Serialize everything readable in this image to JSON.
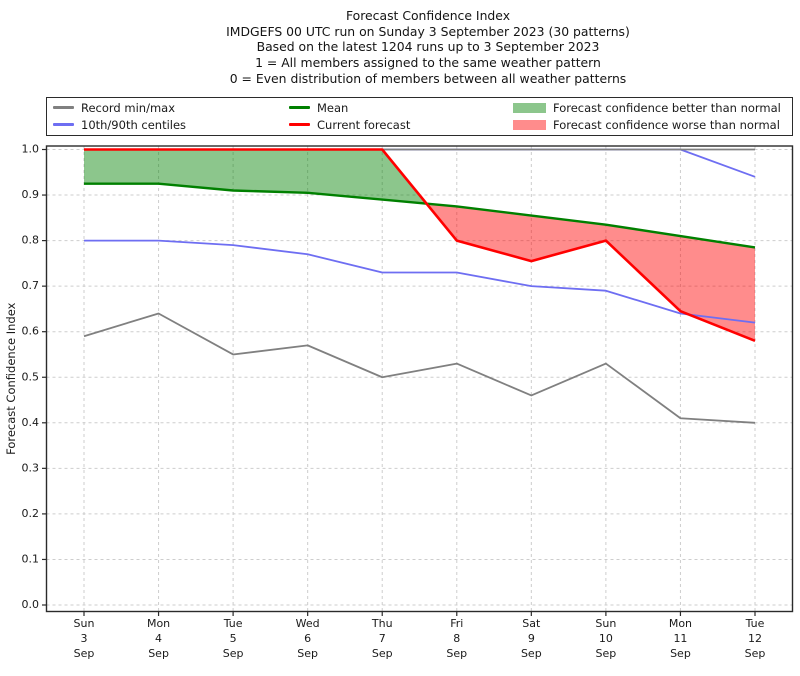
{
  "title": {
    "lines": [
      "Forecast Confidence Index",
      "IMDGEFS 00 UTC run on Sunday 3 September 2023 (30 patterns)",
      "Based on the latest 1204 runs up to 3 September 2023",
      "1 = All members assigned to the same weather pattern",
      "0 = Even distribution of members between all weather patterns"
    ]
  },
  "legend": {
    "items": [
      {
        "label": "Record min/max",
        "swatch": "line",
        "color": "#808080"
      },
      {
        "label": "10th/90th centiles",
        "swatch": "line",
        "color": "#6e6ef2"
      },
      {
        "label": "Mean",
        "swatch": "line",
        "color": "#008000"
      },
      {
        "label": "Current forecast",
        "swatch": "line",
        "color": "#ff0000"
      },
      {
        "label": "Forecast confidence better than normal",
        "swatch": "patch",
        "color": "rgba(0,128,0,0.45)"
      },
      {
        "label": "Forecast confidence worse than normal",
        "swatch": "patch",
        "color": "rgba(255,0,0,0.45)"
      }
    ]
  },
  "chart_data": {
    "type": "line",
    "title": "Forecast Confidence Index",
    "ylabel": "Forecast Confidence Index",
    "ylim": [
      0.0,
      1.0
    ],
    "ytick_step": 0.1,
    "grid": true,
    "legend_position": "top",
    "categories": [
      "Sun 3 Sep",
      "Mon 4 Sep",
      "Tue 5 Sep",
      "Wed 6 Sep",
      "Thu 7 Sep",
      "Fri 8 Sep",
      "Sat 9 Sep",
      "Sun 10 Sep",
      "Mon 11 Sep",
      "Tue 12 Sep"
    ],
    "series": [
      {
        "name": "Record max",
        "role": "record",
        "color": "#808080",
        "values": [
          1.0,
          1.0,
          1.0,
          1.0,
          1.0,
          1.0,
          1.0,
          1.0,
          1.0,
          1.0
        ]
      },
      {
        "name": "Record min",
        "role": "record",
        "color": "#808080",
        "values": [
          0.59,
          0.64,
          0.55,
          0.57,
          0.5,
          0.53,
          0.46,
          0.53,
          0.41,
          0.4
        ]
      },
      {
        "name": "90th centile",
        "role": "centile",
        "color": "#6e6ef2",
        "values": [
          1.0,
          1.0,
          1.0,
          1.0,
          1.0,
          1.0,
          1.0,
          1.0,
          1.0,
          0.94
        ]
      },
      {
        "name": "10th centile",
        "role": "centile",
        "color": "#6e6ef2",
        "values": [
          0.8,
          0.8,
          0.79,
          0.77,
          0.73,
          0.73,
          0.7,
          0.69,
          0.64,
          0.62
        ]
      },
      {
        "name": "Mean",
        "role": "mean",
        "color": "#008000",
        "values": [
          0.925,
          0.925,
          0.91,
          0.905,
          0.89,
          0.875,
          0.855,
          0.835,
          0.81,
          0.785
        ]
      },
      {
        "name": "Current forecast",
        "role": "current",
        "color": "#ff0000",
        "values": [
          1.0,
          1.0,
          1.0,
          1.0,
          1.0,
          0.8,
          0.755,
          0.8,
          0.645,
          0.58
        ]
      }
    ],
    "fills": [
      {
        "name": "Forecast confidence better than normal",
        "between": [
          "Current forecast",
          "Mean"
        ],
        "when": "above",
        "color": "rgba(0,128,0,0.45)"
      },
      {
        "name": "Forecast confidence worse than normal",
        "between": [
          "Current forecast",
          "Mean"
        ],
        "when": "below",
        "color": "rgba(255,0,0,0.45)"
      }
    ]
  }
}
